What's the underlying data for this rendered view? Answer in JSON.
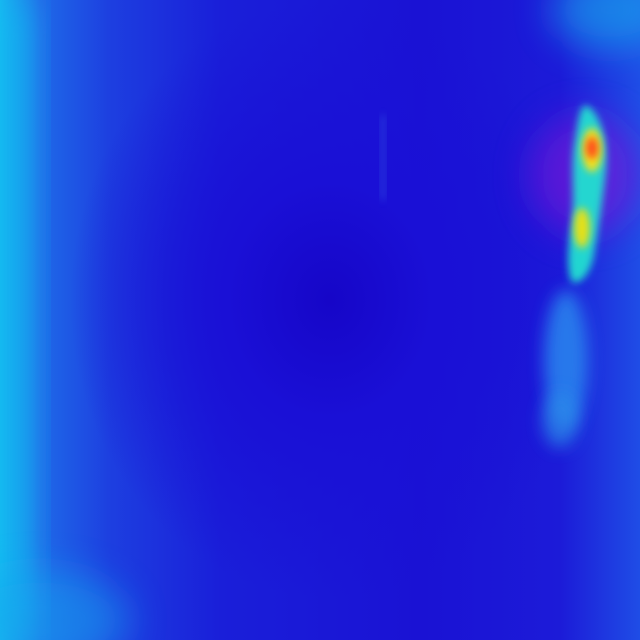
{
  "image": {
    "subject": "thermal-camera-frame",
    "palette": [
      "#14b6f0",
      "#1f6ae8",
      "#1a12d4",
      "#7a18d8",
      "#20e0d0",
      "#f2e21a",
      "#ff4a1a"
    ],
    "hotspot_colors": {
      "cold": "#1a12d4",
      "cool": "#14b6f0",
      "warm": "#20e0d0",
      "hot": "#f2e21a",
      "hottest": "#ff4a1a",
      "halo": "#7a18d8"
    }
  }
}
